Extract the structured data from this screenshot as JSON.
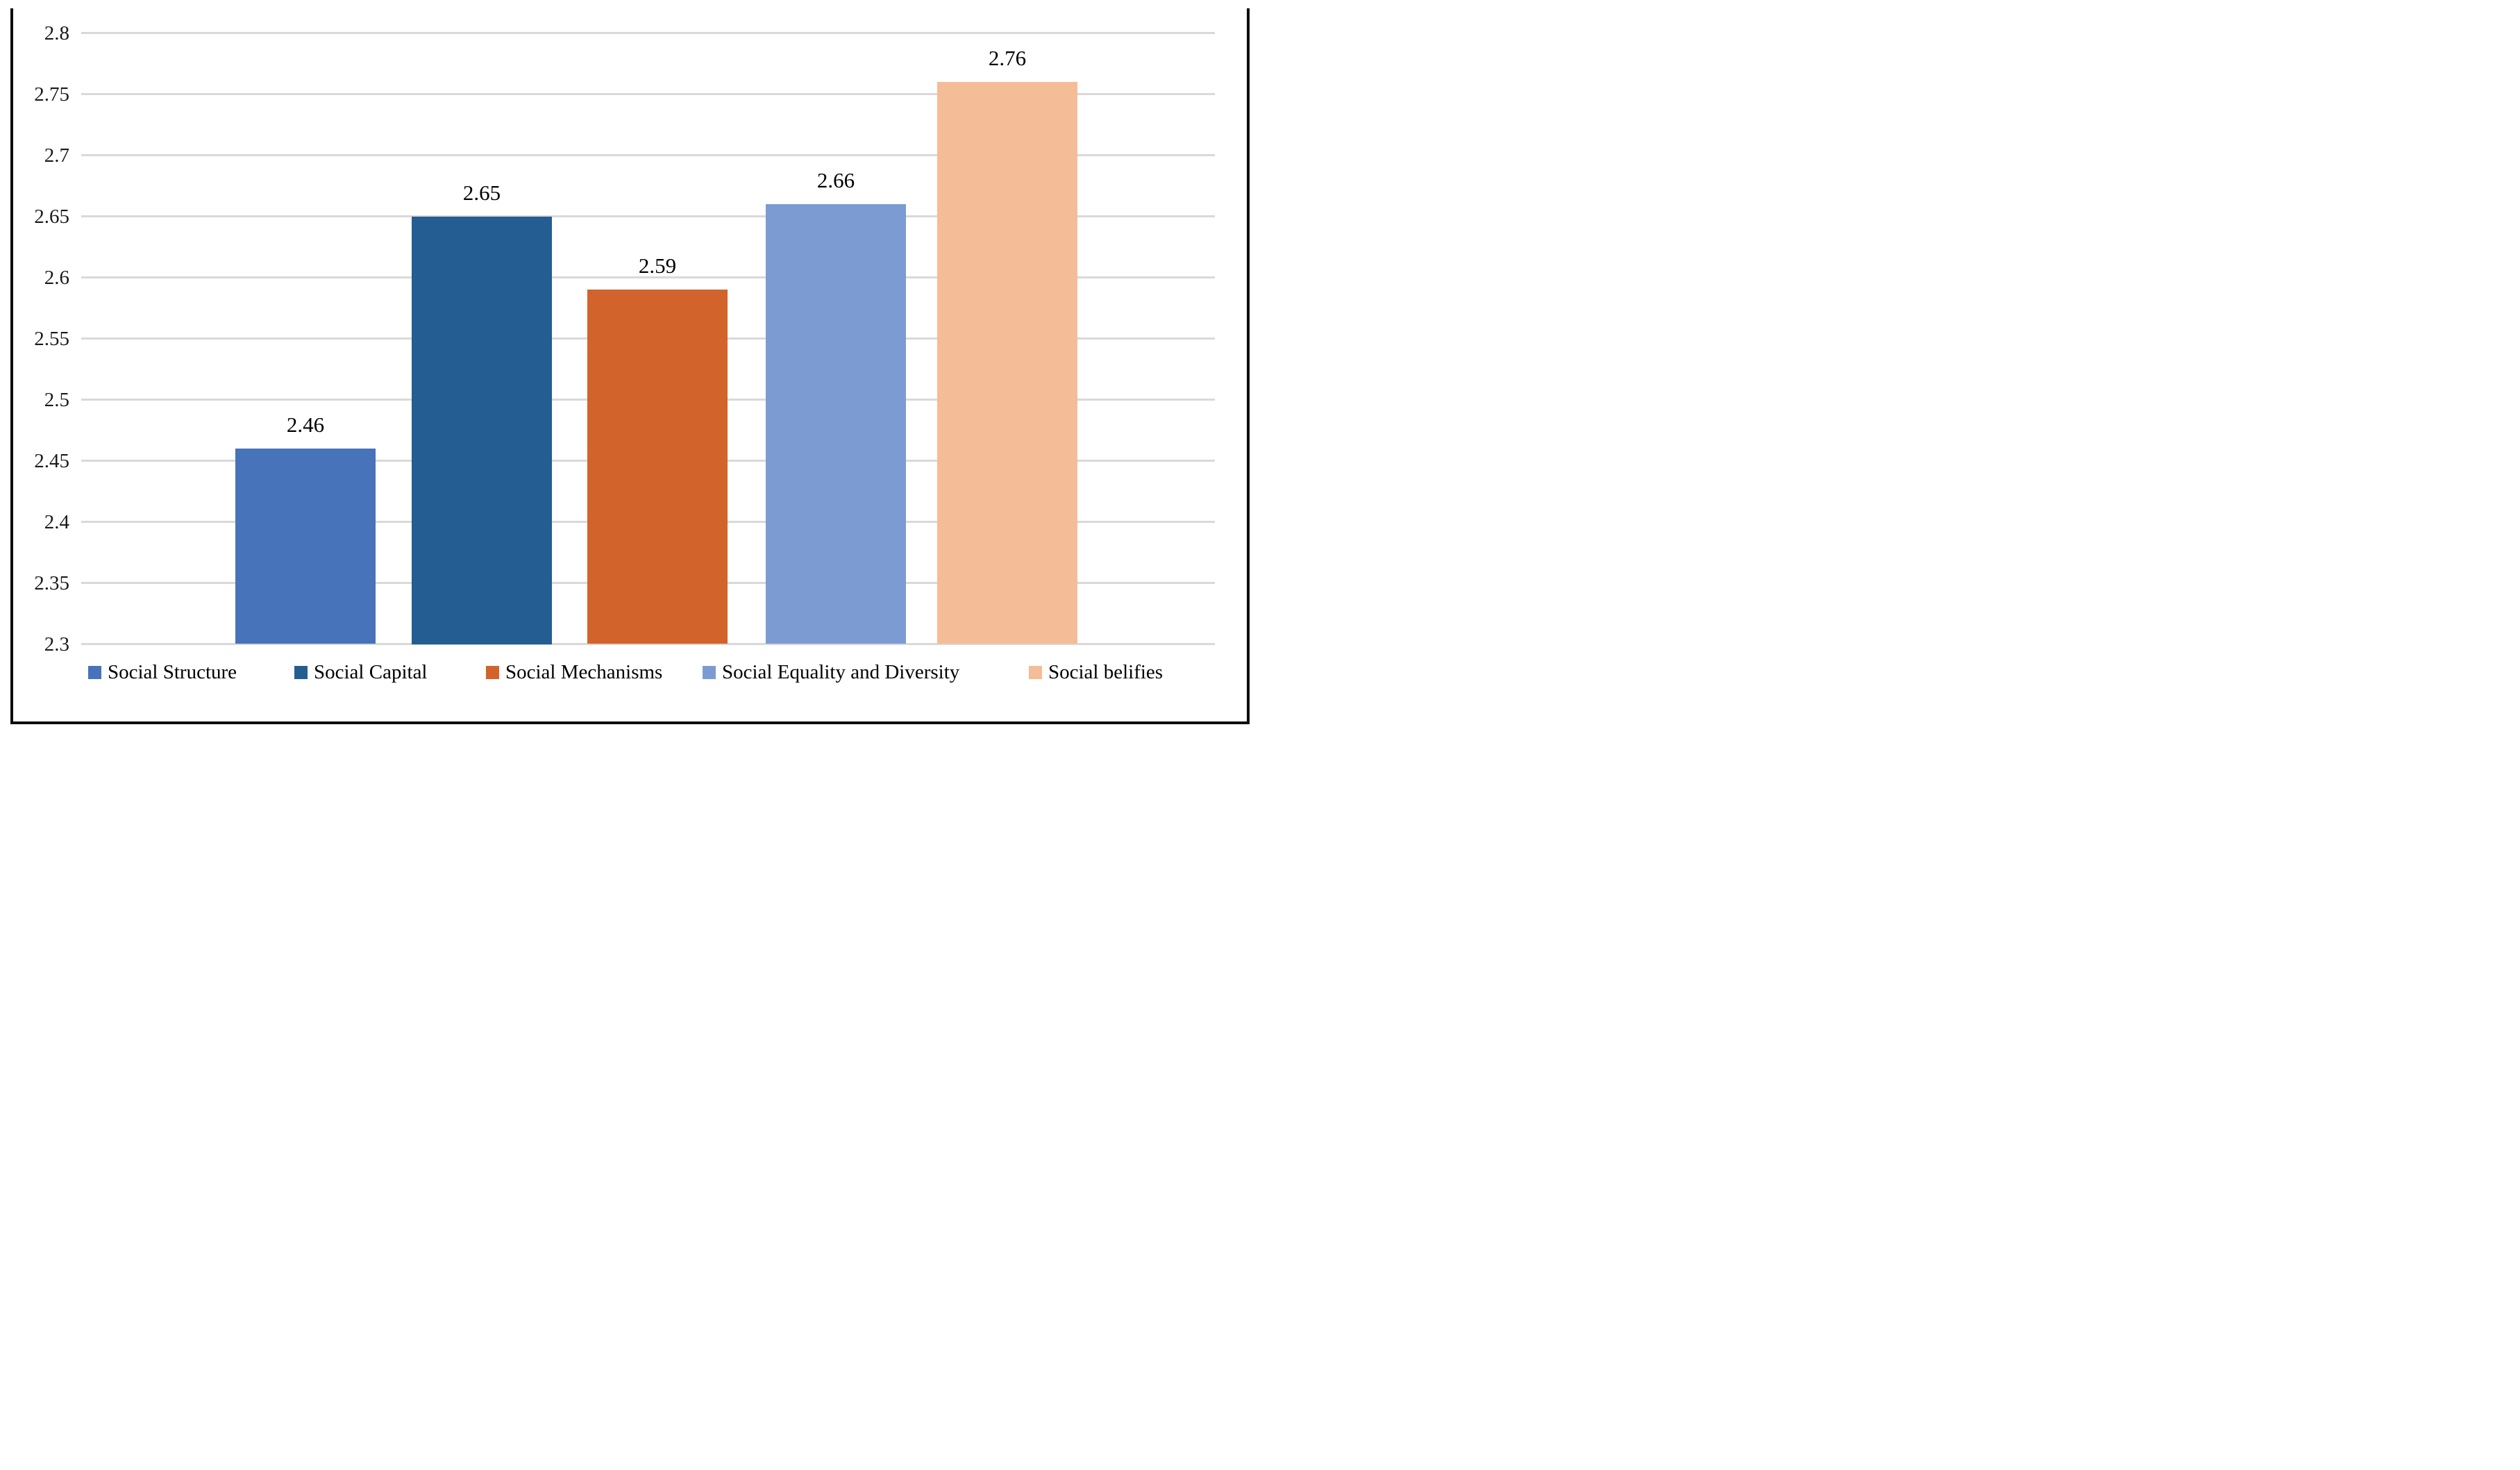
{
  "chart_data": {
    "type": "bar",
    "title": "",
    "xlabel": "",
    "ylabel": "",
    "categories": [
      "Social Structure",
      "Social Capital",
      "Social Mechanisms",
      "Social Equality and Diversity",
      "Social belifies"
    ],
    "values": [
      2.46,
      2.65,
      2.59,
      2.66,
      2.76
    ],
    "data_labels": [
      "2.46",
      "2.65",
      "2.59",
      "2.66",
      "2.76"
    ],
    "bar_colors": [
      "#4673b9",
      "#245d91",
      "#d2632a",
      "#7c9bd3",
      "#f4bc97"
    ],
    "ylim": [
      2.3,
      2.8
    ],
    "ytick_step": 0.05,
    "ytick_labels": [
      "2.8",
      "2.75",
      "2.7",
      "2.65",
      "2.6",
      "2.55",
      "2.5",
      "2.45",
      "2.4",
      "2.35",
      "2.3"
    ],
    "grid": true,
    "gridline_color": "#d9d9d9",
    "frame_color": "#0d0d0d",
    "legend_position": "bottom"
  }
}
